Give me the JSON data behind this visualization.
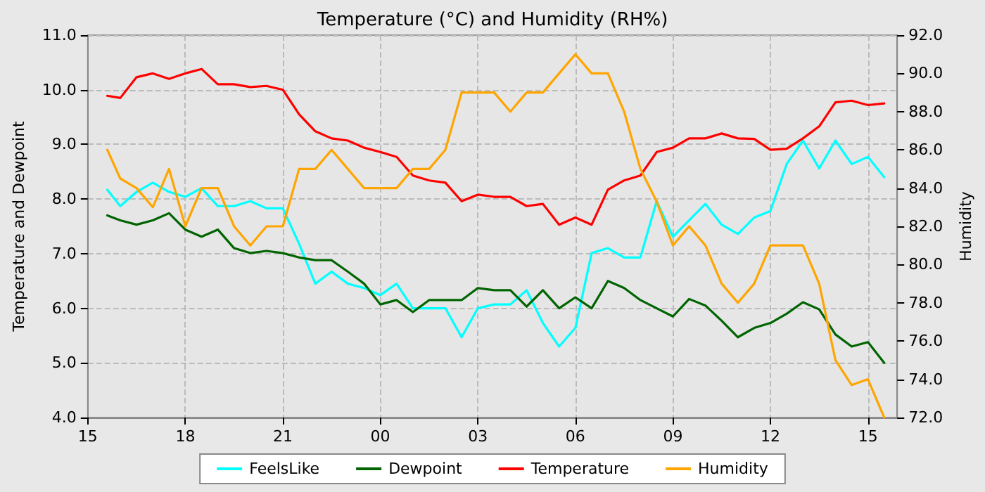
{
  "chart_data": {
    "type": "line",
    "title": "Temperature (°C) and Humidity (RH%)",
    "ylabel": "Temperature and Dewpoint",
    "y2label": "Humidity",
    "x": [
      15.6,
      16,
      16.5,
      17,
      17.5,
      18,
      18.5,
      19,
      19.5,
      20,
      20.5,
      21,
      21.5,
      22,
      22.5,
      23,
      23.5,
      24,
      24.5,
      25,
      25.5,
      26,
      26.5,
      27,
      27.5,
      28,
      28.5,
      29,
      29.5,
      30,
      30.5,
      31,
      31.5,
      32,
      32.5,
      33,
      33.5,
      34,
      34.5,
      35,
      35.5,
      36,
      36.5,
      37,
      37.5,
      38,
      38.5,
      39,
      39.5
    ],
    "series": [
      {
        "name": "FeelsLike",
        "color": "#00ffff",
        "values": [
          8.17,
          7.87,
          8.13,
          8.3,
          8.13,
          8.04,
          8.2,
          7.87,
          7.87,
          7.96,
          7.83,
          7.83,
          7.18,
          6.45,
          6.67,
          6.45,
          6.37,
          6.24,
          6.45,
          6.0,
          6.0,
          6.0,
          5.47,
          6.0,
          6.07,
          6.07,
          6.33,
          5.73,
          5.3,
          5.64,
          7.01,
          7.1,
          6.93,
          6.93,
          7.96,
          7.31,
          7.61,
          7.91,
          7.53,
          7.36,
          7.66,
          7.78,
          8.64,
          9.07,
          8.56,
          9.07,
          8.64,
          8.77,
          8.4
        ]
      },
      {
        "name": "Dewpoint",
        "color": "#006400",
        "values": [
          7.7,
          7.61,
          7.53,
          7.61,
          7.74,
          7.44,
          7.31,
          7.44,
          7.1,
          7.01,
          7.05,
          7.01,
          6.93,
          6.88,
          6.88,
          6.67,
          6.45,
          6.07,
          6.15,
          5.93,
          6.15,
          6.15,
          6.15,
          6.37,
          6.33,
          6.33,
          6.03,
          6.33,
          6.0,
          6.2,
          6.0,
          6.5,
          6.37,
          6.15,
          6.0,
          5.85,
          6.17,
          6.05,
          5.77,
          5.47,
          5.64,
          5.73,
          5.9,
          6.11,
          5.98,
          5.52,
          5.3,
          5.38,
          5.0
        ]
      },
      {
        "name": "Temperature",
        "color": "#ff0000",
        "values": [
          9.89,
          9.85,
          10.23,
          10.3,
          10.2,
          10.3,
          10.38,
          10.1,
          10.1,
          10.05,
          10.07,
          10.0,
          9.55,
          9.24,
          9.11,
          9.07,
          8.94,
          8.86,
          8.77,
          8.43,
          8.34,
          8.3,
          7.96,
          8.08,
          8.04,
          8.04,
          7.87,
          7.91,
          7.53,
          7.66,
          7.53,
          8.17,
          8.34,
          8.43,
          8.86,
          8.94,
          9.11,
          9.11,
          9.2,
          9.11,
          9.1,
          8.9,
          8.92,
          9.11,
          9.33,
          9.77,
          9.8,
          9.72,
          9.75
        ]
      },
      {
        "name": "Humidity",
        "color": "#ffa500",
        "axis": "y2",
        "values": [
          86,
          84.5,
          84,
          83,
          85,
          82,
          84,
          84,
          82,
          81,
          82,
          82,
          85,
          85,
          86,
          85,
          84,
          84,
          84,
          85,
          85,
          86,
          89,
          89,
          89,
          88,
          89,
          89,
          90,
          91,
          90,
          90,
          88,
          85,
          83.3,
          81,
          82,
          81,
          79,
          78,
          79,
          81,
          81,
          81,
          79,
          75,
          73.7,
          74,
          72
        ]
      }
    ],
    "xlim": [
      15,
      39.9
    ],
    "xticks": [
      {
        "value": 15,
        "label": "15"
      },
      {
        "value": 18,
        "label": "18"
      },
      {
        "value": 21,
        "label": "21"
      },
      {
        "value": 24,
        "label": "00"
      },
      {
        "value": 27,
        "label": "03"
      },
      {
        "value": 30,
        "label": "06"
      },
      {
        "value": 33,
        "label": "09"
      },
      {
        "value": 36,
        "label": "12"
      },
      {
        "value": 39,
        "label": "15"
      }
    ],
    "ylim": [
      4,
      11
    ],
    "yticks": [
      {
        "value": 4,
        "label": "4.0"
      },
      {
        "value": 5,
        "label": "5.0"
      },
      {
        "value": 6,
        "label": "6.0"
      },
      {
        "value": 7,
        "label": "7.0"
      },
      {
        "value": 8,
        "label": "8.0"
      },
      {
        "value": 9,
        "label": "9.0"
      },
      {
        "value": 10,
        "label": "10.0"
      },
      {
        "value": 11,
        "label": "11.0"
      }
    ],
    "y2lim": [
      72,
      92
    ],
    "y2ticks": [
      {
        "value": 72,
        "label": "72.0"
      },
      {
        "value": 74,
        "label": "74.0"
      },
      {
        "value": 76,
        "label": "76.0"
      },
      {
        "value": 78,
        "label": "78.0"
      },
      {
        "value": 80,
        "label": "80.0"
      },
      {
        "value": 82,
        "label": "82.0"
      },
      {
        "value": 84,
        "label": "84.0"
      },
      {
        "value": 86,
        "label": "86.0"
      },
      {
        "value": 88,
        "label": "88.0"
      },
      {
        "value": 90,
        "label": "90.0"
      },
      {
        "value": 92,
        "label": "92.0"
      }
    ],
    "grid": true,
    "legend": "bottom",
    "marker": "none",
    "line_style": "solid"
  }
}
